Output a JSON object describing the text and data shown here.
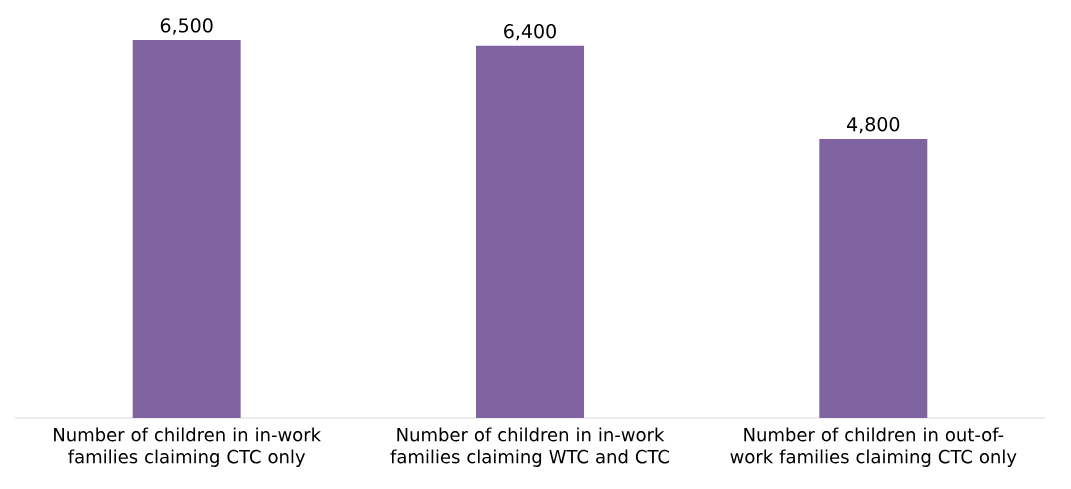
{
  "chart_data": {
    "type": "bar",
    "categories": [
      "Number of children in in-work families claiming CTC only",
      "Number of children in in-work families claiming WTC and CTC",
      "Number of children in out-of-work families claiming CTC only"
    ],
    "values": [
      6500,
      6400,
      4800
    ],
    "value_labels": [
      "6,500",
      "6,400",
      "4,800"
    ],
    "color": "#8064a2"
  }
}
